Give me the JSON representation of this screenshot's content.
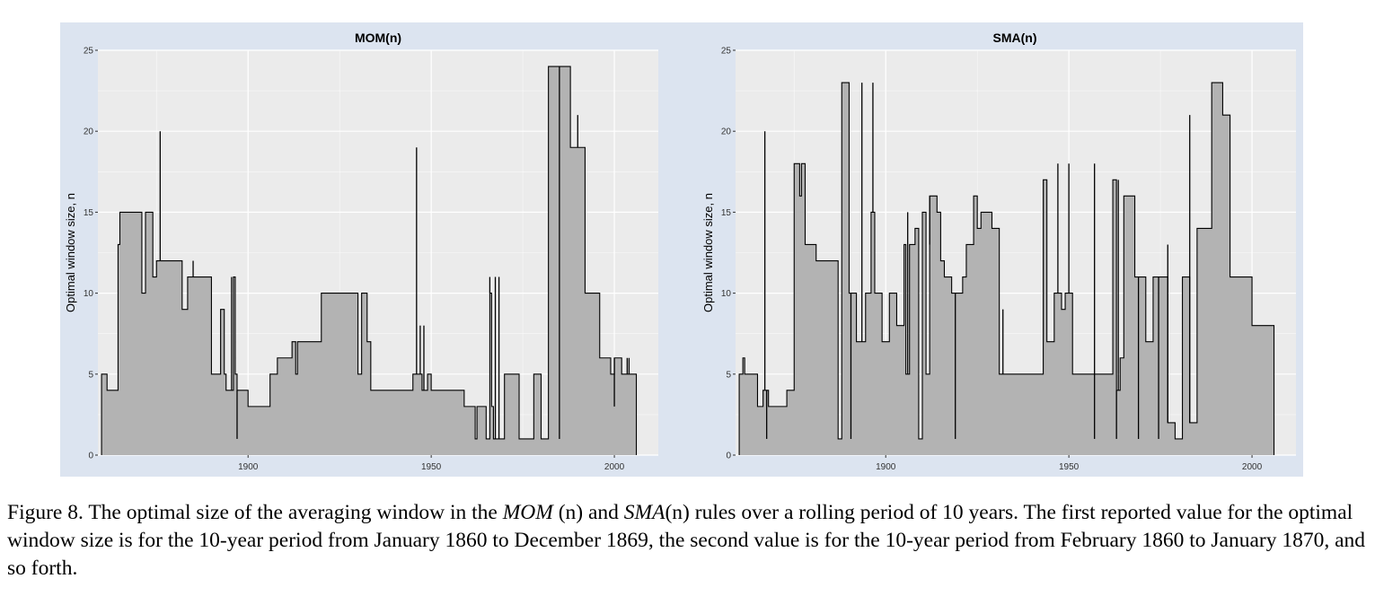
{
  "caption": {
    "figure_label": "Figure 8.",
    "before_mom": "The optimal size of the averaging window in the",
    "mom_name": "MOM",
    "mom_arg": "(n)",
    "between": "and",
    "sma_name": "SMA",
    "sma_arg": "(n)",
    "after": "rules over a rolling period of 10 years. The first reported value for the optimal window size is for the 10-year period from January 1860 to December 1869, the second value is for the 10-year period from February 1860 to January 1870, and so forth."
  },
  "colors": {
    "figure_background": "#dce4f0",
    "panel_background": "#ebebeb",
    "gridline": "#ffffff",
    "area_fill": "#b3b3b3",
    "line": "#000000"
  },
  "chart_data": [
    {
      "type": "area",
      "title": "MOM(n)",
      "xlabel": "",
      "ylabel": "Optimal window size, n",
      "xlim": [
        1859,
        2012
      ],
      "ylim": [
        0,
        25
      ],
      "xticks": [
        "1900",
        "1950",
        "2000"
      ],
      "yticks": [
        "0",
        "5",
        "10",
        "15",
        "20",
        "25"
      ],
      "grid": true,
      "step": [
        [
          1860,
          5
        ],
        [
          1861.5,
          4
        ],
        [
          1864.5,
          13
        ],
        [
          1865,
          15
        ],
        [
          1871,
          10
        ],
        [
          1872,
          15
        ],
        [
          1874,
          11
        ],
        [
          1875,
          12
        ],
        [
          1882,
          9
        ],
        [
          1883.5,
          11
        ],
        [
          1890,
          5
        ],
        [
          1892.5,
          9
        ],
        [
          1893.5,
          5
        ],
        [
          1894,
          4
        ],
        [
          1896,
          11
        ],
        [
          1896.5,
          5
        ],
        [
          1897,
          4
        ],
        [
          1900,
          3
        ],
        [
          1906,
          5
        ],
        [
          1908,
          6
        ],
        [
          1912,
          7
        ],
        [
          1913,
          5
        ],
        [
          1913.5,
          7
        ],
        [
          1920,
          10
        ],
        [
          1930,
          5
        ],
        [
          1931,
          10
        ],
        [
          1932.5,
          7
        ],
        [
          1933.5,
          4
        ],
        [
          1945,
          5
        ],
        [
          1947.5,
          4
        ],
        [
          1949,
          5
        ],
        [
          1950,
          4
        ],
        [
          1959,
          3
        ],
        [
          1962,
          1
        ],
        [
          1962.5,
          3
        ],
        [
          1965,
          1
        ],
        [
          1966,
          10
        ],
        [
          1966.5,
          3
        ],
        [
          1967,
          1
        ],
        [
          1970,
          5
        ],
        [
          1974,
          1
        ],
        [
          1978,
          5
        ],
        [
          1980,
          1
        ],
        [
          1982,
          24
        ],
        [
          1988,
          19
        ],
        [
          1992,
          10
        ],
        [
          1996,
          6
        ],
        [
          1999,
          5
        ],
        [
          2000,
          6
        ],
        [
          2002,
          5
        ],
        [
          2006,
          0
        ]
      ],
      "spikes": [
        [
          1876,
          20
        ],
        [
          1885,
          12
        ],
        [
          1895.5,
          11
        ],
        [
          1897,
          1
        ],
        [
          1946,
          19
        ],
        [
          1947,
          8
        ],
        [
          1948,
          8
        ],
        [
          1966,
          11
        ],
        [
          1967.5,
          11
        ],
        [
          1968.5,
          11
        ],
        [
          1985,
          1
        ],
        [
          1990,
          21
        ],
        [
          2000,
          3
        ],
        [
          2003.5,
          6
        ],
        [
          2004,
          6
        ]
      ]
    },
    {
      "type": "area",
      "title": "SMA(n)",
      "xlabel": "",
      "ylabel": "Optimal window size, n",
      "xlim": [
        1859,
        2012
      ],
      "ylim": [
        0,
        25
      ],
      "xticks": [
        "1900",
        "1950",
        "2000"
      ],
      "yticks": [
        "0",
        "5",
        "10",
        "15",
        "20",
        "25"
      ],
      "grid": true,
      "step": [
        [
          1860,
          5
        ],
        [
          1861,
          6
        ],
        [
          1861.5,
          5
        ],
        [
          1865,
          3
        ],
        [
          1866.5,
          4
        ],
        [
          1868,
          3
        ],
        [
          1870,
          3
        ],
        [
          1873,
          4
        ],
        [
          1875,
          18
        ],
        [
          1876.5,
          16
        ],
        [
          1877,
          18
        ],
        [
          1877.5,
          18
        ],
        [
          1878,
          13
        ],
        [
          1881,
          12
        ],
        [
          1887,
          1
        ],
        [
          1888,
          23
        ],
        [
          1890,
          10
        ],
        [
          1892,
          7
        ],
        [
          1894.5,
          10
        ],
        [
          1896,
          15
        ],
        [
          1897,
          10
        ],
        [
          1899,
          7
        ],
        [
          1901,
          10
        ],
        [
          1903,
          8
        ],
        [
          1905,
          13
        ],
        [
          1905.5,
          5
        ],
        [
          1906.5,
          13
        ],
        [
          1908,
          14
        ],
        [
          1909,
          1
        ],
        [
          1910,
          15
        ],
        [
          1911,
          5
        ],
        [
          1912,
          16
        ],
        [
          1914,
          15
        ],
        [
          1915,
          12
        ],
        [
          1916,
          11
        ],
        [
          1918,
          10
        ],
        [
          1921,
          11
        ],
        [
          1922,
          13
        ],
        [
          1924,
          16
        ],
        [
          1925,
          14
        ],
        [
          1926,
          15
        ],
        [
          1929,
          14
        ],
        [
          1931,
          5
        ],
        [
          1938,
          5
        ],
        [
          1943,
          17
        ],
        [
          1944,
          7
        ],
        [
          1946,
          10
        ],
        [
          1948,
          9
        ],
        [
          1949,
          10
        ],
        [
          1951,
          5
        ],
        [
          1962,
          17
        ],
        [
          1963,
          4
        ],
        [
          1964,
          6
        ],
        [
          1965,
          16
        ],
        [
          1968,
          11
        ],
        [
          1971,
          7
        ],
        [
          1973,
          11
        ],
        [
          1977,
          2
        ],
        [
          1979,
          1
        ],
        [
          1981,
          11
        ],
        [
          1983,
          2
        ],
        [
          1985,
          14
        ],
        [
          1989,
          23
        ],
        [
          1992,
          21
        ],
        [
          1994,
          11
        ],
        [
          2000,
          8
        ],
        [
          2006,
          0
        ]
      ],
      "spikes": [
        [
          1867,
          20
        ],
        [
          1867.5,
          1
        ],
        [
          1890.5,
          1
        ],
        [
          1893.5,
          23
        ],
        [
          1896.5,
          23
        ],
        [
          1912,
          13
        ],
        [
          1914,
          15
        ],
        [
          1919,
          1
        ],
        [
          1932,
          9
        ],
        [
          1947,
          18
        ],
        [
          1957,
          18
        ],
        [
          1957,
          1
        ],
        [
          1963,
          1
        ],
        [
          1963.5,
          17
        ],
        [
          1969,
          1
        ],
        [
          1974.5,
          1
        ],
        [
          1977,
          13
        ],
        [
          1983,
          21
        ],
        [
          1985.5,
          14
        ],
        [
          1950,
          18
        ],
        [
          1906,
          15
        ]
      ]
    }
  ]
}
